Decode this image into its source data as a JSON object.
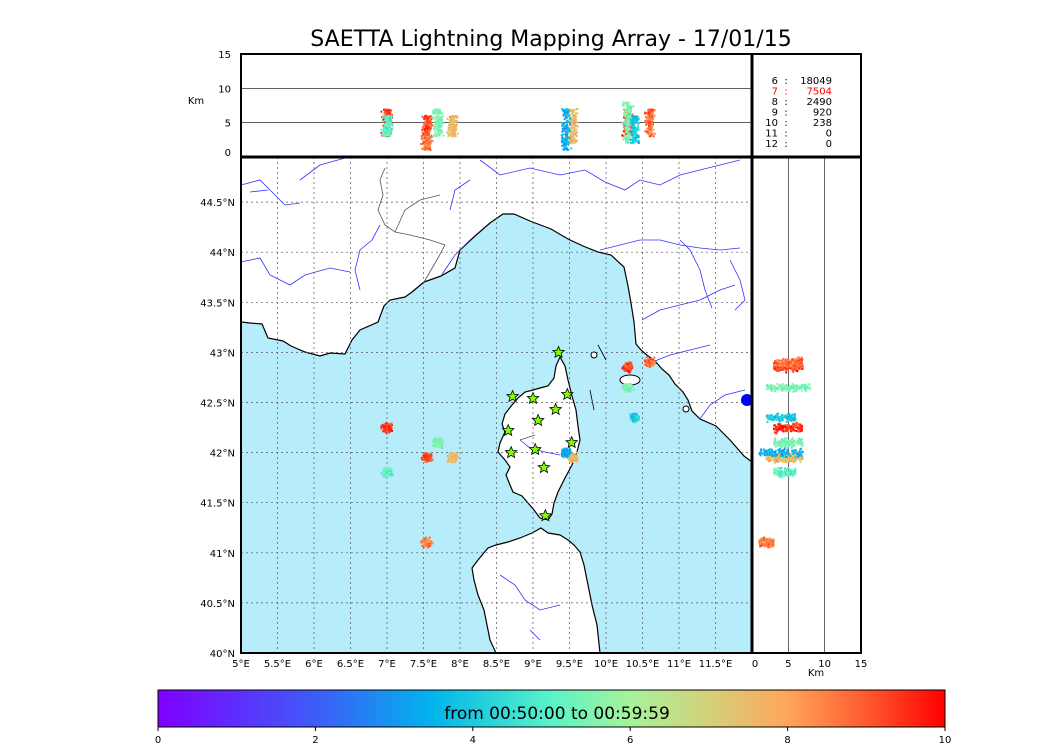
{
  "title": "SAETTA Lightning Mapping Array - 17/01/15",
  "colors": {
    "sea": "#b7ecfb",
    "river": "#3333ff",
    "grid": "#555555",
    "red_stat": "#ff0000"
  },
  "top_panel": {
    "ylabel": "Km",
    "yticks": [
      "0",
      "5",
      "10",
      "15"
    ],
    "reference_lines_km": [
      5,
      10
    ]
  },
  "stats": [
    {
      "k": "6",
      "v": "18049",
      "highlight": false
    },
    {
      "k": "7",
      "v": "7504",
      "highlight": true
    },
    {
      "k": "8",
      "v": "2490",
      "highlight": false
    },
    {
      "k": "9",
      "v": "920",
      "highlight": false
    },
    {
      "k": "10",
      "v": "238",
      "highlight": false
    },
    {
      "k": "11",
      "v": "0",
      "highlight": false
    },
    {
      "k": "12",
      "v": "0",
      "highlight": false
    }
  ],
  "map": {
    "lon_ticks": [
      "5°E",
      "5.5°E",
      "6°E",
      "6.5°E",
      "7°E",
      "7.5°E",
      "8°E",
      "8.5°E",
      "9°E",
      "9.5°E",
      "10°E",
      "10.5°E",
      "11°E",
      "11.5°E"
    ],
    "lat_ticks": [
      "40°N",
      "40.5°N",
      "41°N",
      "41.5°N",
      "42°N",
      "42.5°N",
      "43°N",
      "43.5°N",
      "44°N",
      "44.5°N"
    ],
    "lon_range": [
      5,
      12
    ],
    "lat_range": [
      40,
      44.95
    ]
  },
  "right_panel": {
    "xlabel": "Km",
    "xticks": [
      "0",
      "5",
      "10",
      "15"
    ],
    "reference_lines_km": [
      5,
      10
    ]
  },
  "stations": [
    {
      "lon": 9.35,
      "lat": 43.0
    },
    {
      "lon": 8.72,
      "lat": 42.56
    },
    {
      "lon": 9.0,
      "lat": 42.54
    },
    {
      "lon": 9.47,
      "lat": 42.58
    },
    {
      "lon": 9.31,
      "lat": 42.43
    },
    {
      "lon": 9.07,
      "lat": 42.32
    },
    {
      "lon": 8.66,
      "lat": 42.22
    },
    {
      "lon": 9.53,
      "lat": 42.1
    },
    {
      "lon": 8.7,
      "lat": 42.0
    },
    {
      "lon": 9.03,
      "lat": 42.03
    },
    {
      "lon": 9.15,
      "lat": 41.85
    },
    {
      "lon": 9.17,
      "lat": 41.37
    }
  ],
  "chart_data": {
    "type": "scatter",
    "title": "SAETTA Lightning Mapping Array - 17/01/15",
    "colorbar": {
      "label": "from 00:50:00 to 00:59:59",
      "ticks": [
        "0",
        "2",
        "4",
        "6",
        "8",
        "10"
      ],
      "range": [
        0,
        10
      ]
    },
    "source_clusters": [
      {
        "lon": 7.0,
        "lat": 42.25,
        "alt_km": [
          3,
          7
        ],
        "time": 9.5
      },
      {
        "lon": 7.0,
        "lat": 41.8,
        "alt_km": [
          3,
          6
        ],
        "time": 5.0
      },
      {
        "lon": 7.55,
        "lat": 41.95,
        "alt_km": [
          3,
          6
        ],
        "time": 9.2
      },
      {
        "lon": 7.7,
        "lat": 42.1,
        "alt_km": [
          3,
          7
        ],
        "time": 5.5
      },
      {
        "lon": 7.9,
        "lat": 41.95,
        "alt_km": [
          3,
          6
        ],
        "time": 7.6
      },
      {
        "lon": 7.55,
        "lat": 41.1,
        "alt_km": [
          1,
          3
        ],
        "time": 8.5
      },
      {
        "lon": 9.55,
        "lat": 41.95,
        "alt_km": [
          2,
          7
        ],
        "time": 7.5
      },
      {
        "lon": 9.45,
        "lat": 42.0,
        "alt_km": [
          1,
          7
        ],
        "time": 3.5
      },
      {
        "lon": 10.3,
        "lat": 42.85,
        "alt_km": [
          3,
          7
        ],
        "time": 9.2
      },
      {
        "lon": 10.6,
        "lat": 42.9,
        "alt_km": [
          3,
          7
        ],
        "time": 8.8
      },
      {
        "lon": 10.3,
        "lat": 42.65,
        "alt_km": [
          2,
          8
        ],
        "time": 5.5
      },
      {
        "lon": 10.4,
        "lat": 42.35,
        "alt_km": [
          2,
          6
        ],
        "time": 4.0
      }
    ]
  }
}
